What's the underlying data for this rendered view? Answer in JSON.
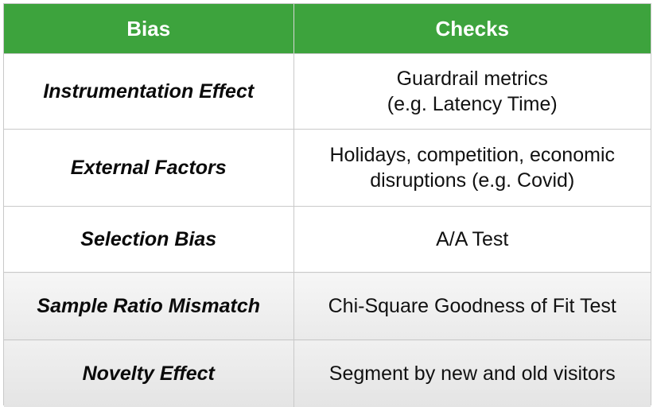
{
  "table": {
    "header": {
      "bias": "Bias",
      "checks": "Checks"
    },
    "rows": [
      {
        "bias": "Instrumentation Effect",
        "checks_line1": "Guardrail metrics",
        "checks_line2": "(e.g. Latency Time)"
      },
      {
        "bias": "External Factors",
        "checks_line1": "Holidays, competition, economic",
        "checks_line2": "disruptions (e.g. Covid)"
      },
      {
        "bias": "Selection Bias",
        "checks_line1": "A/A Test"
      },
      {
        "bias": "Sample Ratio Mismatch",
        "checks_line1": "Chi-Square Goodness of Fit Test"
      },
      {
        "bias": "Novelty Effect",
        "checks_line1": "Segment by new and old visitors"
      }
    ]
  },
  "colors": {
    "header_green": "#3da33d",
    "header_text": "#ffffff",
    "border": "#c9c9c9"
  }
}
